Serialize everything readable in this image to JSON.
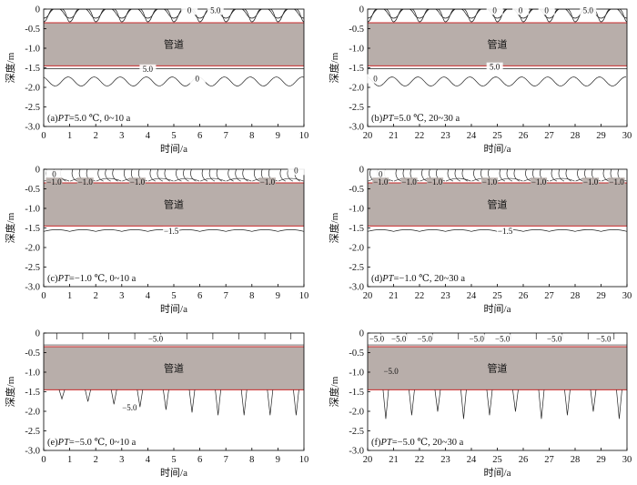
{
  "chart_data": [
    {
      "panel": "a",
      "type": "contour",
      "caption": "(a)PT=5.0 ℃, 0~10 a",
      "caption_prefix": "(a)",
      "caption_italic": "PT",
      "caption_suffix": "=5.0 ℃, 0~10 a",
      "pipe_label": "管道",
      "pipe_depth_range": [
        -1.45,
        -0.35
      ],
      "xlabel": "时间/a",
      "ylabel": "深度/m",
      "xlim": [
        0,
        10
      ],
      "ylim": [
        -3.0,
        0
      ],
      "xticks": [
        "0",
        "1",
        "2",
        "3",
        "4",
        "5",
        "6",
        "7",
        "8",
        "9",
        "10"
      ],
      "yticks": [
        "0",
        "-0.5",
        "-1.0",
        "-1.5",
        "-2.0",
        "-2.5",
        "-3.0"
      ],
      "contour_labels": [
        {
          "text": "0",
          "x": 5.6,
          "y": -0.1
        },
        {
          "text": "5.0",
          "x": 6.6,
          "y": -0.1
        },
        {
          "text": "5.0",
          "x": 4.0,
          "y": -1.6
        },
        {
          "text": "0",
          "x": 5.9,
          "y": -1.85
        }
      ]
    },
    {
      "panel": "b",
      "type": "contour",
      "caption": "(b)PT=5.0 ℃, 20~30 a",
      "caption_prefix": "(b)",
      "caption_italic": "PT",
      "caption_suffix": "=5.0 ℃, 20~30 a",
      "pipe_label": "管道",
      "pipe_depth_range": [
        -1.45,
        -0.35
      ],
      "xlabel": "时间/a",
      "ylabel": "深度/m",
      "xlim": [
        20,
        30
      ],
      "ylim": [
        -3.0,
        0
      ],
      "xticks": [
        "20",
        "21",
        "22",
        "23",
        "24",
        "25",
        "26",
        "27",
        "28",
        "29",
        "30"
      ],
      "yticks": [
        "0",
        "-0.5",
        "-1.0",
        "-1.5",
        "-2.0",
        "-2.5",
        "-3.0"
      ],
      "contour_labels": [
        {
          "text": "0",
          "x": 24.9,
          "y": -0.1
        },
        {
          "text": "0",
          "x": 25.9,
          "y": -0.1
        },
        {
          "text": "0",
          "x": 26.9,
          "y": -0.1
        },
        {
          "text": "5.0",
          "x": 28.5,
          "y": -0.1
        },
        {
          "text": "5.0",
          "x": 24.9,
          "y": -1.55
        },
        {
          "text": "0",
          "x": 20.3,
          "y": -1.85
        }
      ]
    },
    {
      "panel": "c",
      "type": "contour",
      "caption": "(c)PT=−1.0 ℃, 0~10 a",
      "caption_prefix": "(c)",
      "caption_italic": "PT",
      "caption_suffix": "=−1.0 ℃, 0~10 a",
      "pipe_label": "管道",
      "pipe_depth_range": [
        -1.45,
        -0.35
      ],
      "xlabel": "时间/a",
      "ylabel": "深度/m",
      "xlim": [
        0,
        10
      ],
      "ylim": [
        -3.0,
        0
      ],
      "xticks": [
        "0",
        "1",
        "2",
        "3",
        "4",
        "5",
        "6",
        "7",
        "8",
        "9",
        "10"
      ],
      "yticks": [
        "0",
        "-0.5",
        "-1.0",
        "-1.5",
        "-2.0",
        "-2.5",
        "-3.0"
      ],
      "contour_labels": [
        {
          "text": "0",
          "x": 0.4,
          "y": -0.2
        },
        {
          "text": "0",
          "x": 9.7,
          "y": -0.1
        },
        {
          "text": "−1.0",
          "x": 0.4,
          "y": -0.4
        },
        {
          "text": "−1.0",
          "x": 1.6,
          "y": -0.4
        },
        {
          "text": "−1.0",
          "x": 3.6,
          "y": -0.4
        },
        {
          "text": "−1.0",
          "x": 8.6,
          "y": -0.4
        },
        {
          "text": "−1.5",
          "x": 4.9,
          "y": -1.65
        }
      ]
    },
    {
      "panel": "d",
      "type": "contour",
      "caption": "(d)PT=−1.0 ℃, 20~30 a",
      "caption_prefix": "(d)",
      "caption_italic": "PT",
      "caption_suffix": "=−1.0 ℃, 20~30 a",
      "pipe_label": "管道",
      "pipe_depth_range": [
        -1.45,
        -0.35
      ],
      "xlabel": "时间/a",
      "ylabel": "深度/m",
      "xlim": [
        20,
        30
      ],
      "ylim": [
        -3.0,
        0
      ],
      "xticks": [
        "20",
        "21",
        "22",
        "23",
        "24",
        "25",
        "26",
        "27",
        "28",
        "29",
        "30"
      ],
      "yticks": [
        "0",
        "-0.5",
        "-1.0",
        "-1.5",
        "-2.0",
        "-2.5",
        "-3.0"
      ],
      "contour_labels": [
        {
          "text": "0",
          "x": 20.5,
          "y": -0.2
        },
        {
          "text": "−1.0",
          "x": 20.5,
          "y": -0.4
        },
        {
          "text": "−1.0",
          "x": 21.6,
          "y": -0.4
        },
        {
          "text": "−1.0",
          "x": 22.6,
          "y": -0.4
        },
        {
          "text": "−1.0",
          "x": 24.7,
          "y": -0.4
        },
        {
          "text": "−1.0",
          "x": 26.6,
          "y": -0.4
        },
        {
          "text": "−1.0",
          "x": 28.6,
          "y": -0.4
        },
        {
          "text": "−1.0",
          "x": 29.6,
          "y": -0.4
        },
        {
          "text": "−1.5",
          "x": 25.3,
          "y": -1.65
        }
      ]
    },
    {
      "panel": "e",
      "type": "contour",
      "caption": "(e)PT=−5.0 ℃, 0~10 a",
      "caption_prefix": "(e)",
      "caption_italic": "PT",
      "caption_suffix": "=−5.0 ℃, 0~10 a",
      "pipe_label": "管道",
      "pipe_depth_range": [
        -1.45,
        -0.35
      ],
      "xlabel": "时间/a",
      "ylabel": "深度/m",
      "xlim": [
        0,
        10
      ],
      "ylim": [
        -3.0,
        0
      ],
      "xticks": [
        "0",
        "1",
        "2",
        "3",
        "4",
        "5",
        "6",
        "7",
        "8",
        "9",
        "10"
      ],
      "yticks": [
        "0",
        "-0.5",
        "-1.0",
        "-1.5",
        "-2.0",
        "-2.5",
        "-3.0"
      ],
      "contour_labels": [
        {
          "text": "−5.0",
          "x": 4.3,
          "y": -0.22
        },
        {
          "text": "−5.0",
          "x": 3.3,
          "y": -1.98
        }
      ]
    },
    {
      "panel": "f",
      "type": "contour",
      "caption": "(f)PT=−5.0 ℃, 20~30 a",
      "caption_prefix": "(f)",
      "caption_italic": "PT",
      "caption_suffix": "=−5.0 ℃, 20~30 a",
      "pipe_label": "管道",
      "pipe_depth_range": [
        -1.45,
        -0.35
      ],
      "xlabel": "时间/a",
      "ylabel": "深度/m",
      "xlim": [
        20,
        30
      ],
      "ylim": [
        -3.0,
        0
      ],
      "xticks": [
        "20",
        "21",
        "22",
        "23",
        "24",
        "25",
        "26",
        "27",
        "28",
        "29",
        "30"
      ],
      "yticks": [
        "0",
        "-0.5",
        "-1.0",
        "-1.5",
        "-2.0",
        "-2.5",
        "-3.0"
      ],
      "contour_labels": [
        {
          "text": "−5.0",
          "x": 20.35,
          "y": -0.22
        },
        {
          "text": "−5.0",
          "x": 21.2,
          "y": -0.22
        },
        {
          "text": "−5.0",
          "x": 22.2,
          "y": -0.22
        },
        {
          "text": "−5.0",
          "x": 24.2,
          "y": -0.22
        },
        {
          "text": "−5.0",
          "x": 25.2,
          "y": -0.22
        },
        {
          "text": "−5.0",
          "x": 27.2,
          "y": -0.22
        },
        {
          "text": "−5.0",
          "x": 29.1,
          "y": -0.22
        },
        {
          "text": "−5.0",
          "x": 20.9,
          "y": -1.05
        }
      ]
    }
  ],
  "colors": {
    "pipe_fill": "#b8aeaa",
    "pipe_edge": "#c8282a",
    "contour": "#222222",
    "axis": "#000000"
  }
}
